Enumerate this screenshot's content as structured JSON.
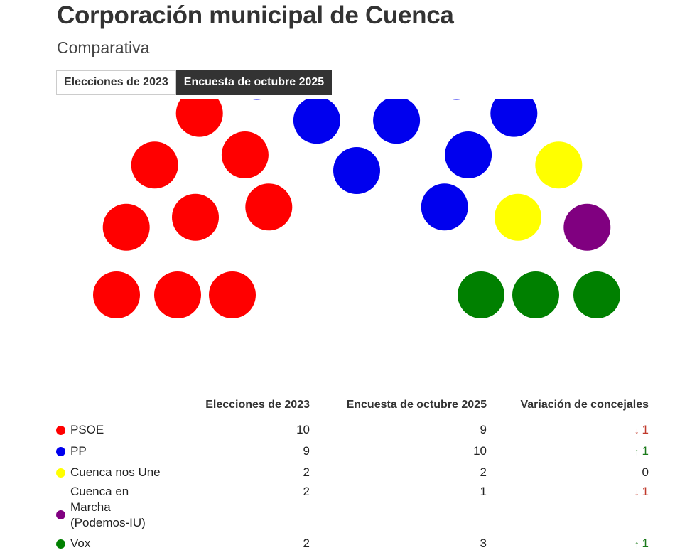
{
  "title": "Corporación municipal de Cuenca",
  "subtitle": "Comparativa",
  "tabs": [
    {
      "label": "Elecciones de 2023",
      "active": false
    },
    {
      "label": "Encuesta de octubre 2025",
      "active": true
    }
  ],
  "table": {
    "headers": [
      "",
      "Elecciones de 2023",
      "Encuesta de octubre 2025",
      "Variación de concejales"
    ],
    "rows": [
      {
        "party": "PSOE",
        "color": "#ff0000",
        "v2023": "10",
        "v2025": "9",
        "arrow": "↓",
        "delta": "1",
        "dir": "down"
      },
      {
        "party": "PP",
        "color": "#0000ee",
        "v2023": "9",
        "v2025": "10",
        "arrow": "↑",
        "delta": "1",
        "dir": "up"
      },
      {
        "party": "Cuenca nos Une",
        "color": "#ffff00",
        "v2023": "2",
        "v2025": "2",
        "arrow": "",
        "delta": "0",
        "dir": "neutral"
      },
      {
        "party": "Cuenca en Marcha (Podemos-IU)",
        "color": "#800080",
        "v2023": "2",
        "v2025": "1",
        "arrow": "↓",
        "delta": "1",
        "dir": "down"
      },
      {
        "party": "Vox",
        "color": "#008000",
        "v2023": "2",
        "v2025": "3",
        "arrow": "↑",
        "delta": "1",
        "dir": "up"
      }
    ]
  },
  "chart_data": {
    "type": "parliament",
    "selected": "Encuesta de octubre 2025",
    "total_seats": 25,
    "series": [
      {
        "name": "PSOE",
        "color": "#ff0000",
        "seats": 9
      },
      {
        "name": "PP",
        "color": "#0000ee",
        "seats": 10
      },
      {
        "name": "Cuenca nos Une",
        "color": "#ffff00",
        "seats": 2
      },
      {
        "name": "Cuenca en Marcha (Podemos-IU)",
        "color": "#800080",
        "seats": 1
      },
      {
        "name": "Vox",
        "color": "#008000",
        "seats": 3
      }
    ]
  }
}
